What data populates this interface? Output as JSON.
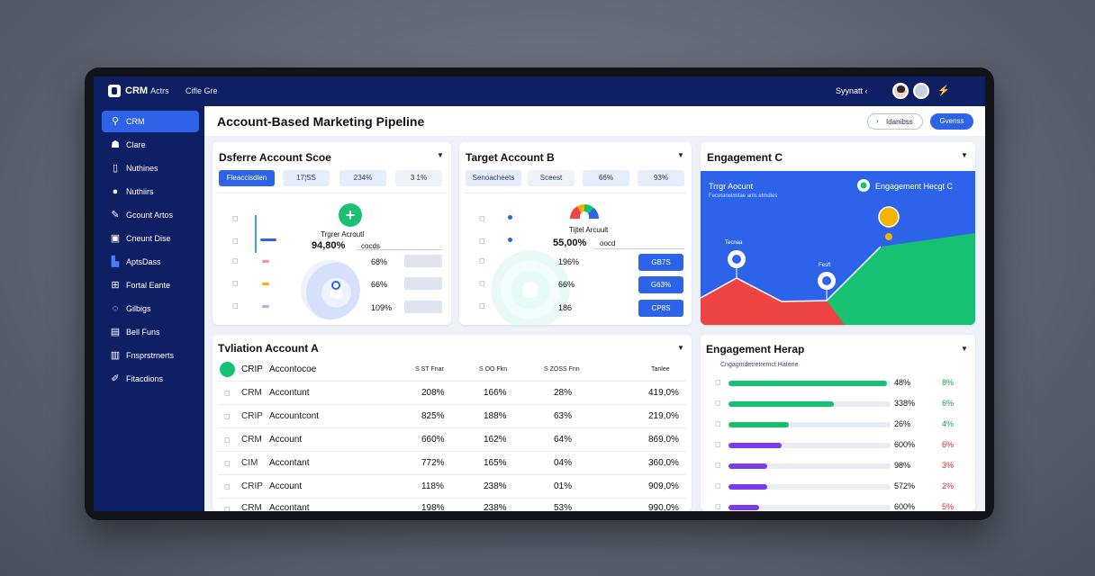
{
  "topbar": {
    "brand": "CRM",
    "brand_sub": "Actrs",
    "crumb": "Cifle Gre",
    "user": "Syynatt ‹"
  },
  "sidebar": {
    "items": [
      {
        "label": "CRM",
        "icon": "search-icon",
        "active": true
      },
      {
        "label": "Clare",
        "icon": "user-icon"
      },
      {
        "label": "Nuthines",
        "icon": "document-icon"
      },
      {
        "label": "Nuthiirs",
        "icon": "circle-icon"
      },
      {
        "label": "Gcount Artos",
        "icon": "edit-icon"
      },
      {
        "label": "Cneunt Dise",
        "icon": "calendar-icon"
      },
      {
        "label": "AptsDass",
        "icon": "building-icon"
      },
      {
        "label": "Fortal Eante",
        "icon": "grid-icon"
      },
      {
        "label": "Gilbigs",
        "icon": "chat-icon"
      },
      {
        "label": "Bell Funs",
        "icon": "box-icon"
      },
      {
        "label": "Fnsprstrnerts",
        "icon": "file-icon"
      },
      {
        "label": "Fitacdions",
        "icon": "wrench-icon"
      }
    ]
  },
  "header": {
    "title": "Account-Based Marketing Pipeline",
    "outline_button": "Idanibss",
    "primary_button": "Gvenss"
  },
  "card1": {
    "title": "Dsferre Account Scoe",
    "chips": [
      "Fleaccisdlen",
      "17¦SS",
      "234%",
      "3 1%"
    ],
    "center_label": "Trgrer Acroutl",
    "center_value": "94,80%",
    "center_sub": "cocds",
    "rows": [
      "68%",
      "66%",
      "109%"
    ]
  },
  "card2": {
    "title": "Target Account B",
    "chips": [
      "Senoacheets",
      "Sceest",
      "66%",
      "93%"
    ],
    "center_label": "Tijtel Arcuult",
    "center_value": "55,00%",
    "center_sub": "oocd",
    "rows": [
      {
        "value": "196%",
        "button": "GB7S"
      },
      {
        "value": "66%",
        "button": "G63%"
      },
      {
        "value": "186",
        "button": "CP8S"
      }
    ]
  },
  "card3": {
    "title": "Engagement C",
    "chart_title": "Trrgr Aocunt",
    "chart_sub": "Fecetanelmitae anls etmdies",
    "legend": "Engagement Hecgt C",
    "marker1": "Tecnaa",
    "marker2": "Fesft"
  },
  "table": {
    "title": "Tvliation Account A",
    "headers": [
      "S ST Fnar",
      "S OO Fkn",
      "S ZOSS Fnn",
      "Tanlee"
    ],
    "rows": [
      {
        "a": "CRIP",
        "b": "Accontocoe",
        "c": "",
        "d": "",
        "e": "",
        "f": ""
      },
      {
        "a": "CRM",
        "b": "Accontunt",
        "c": "208%",
        "d": "166%",
        "e": "28%",
        "f": "419,0%"
      },
      {
        "a": "CRIP",
        "b": "Accountcont",
        "c": "825%",
        "d": "188%",
        "e": "63%",
        "f": "219,0%"
      },
      {
        "a": "CRM",
        "b": "Account",
        "c": "660%",
        "d": "162%",
        "e": "64%",
        "f": "869,0%"
      },
      {
        "a": "CIM",
        "b": "Accontant",
        "c": "772%",
        "d": "165%",
        "e": "04%",
        "f": "360,0%"
      },
      {
        "a": "CRIP",
        "b": "Account",
        "c": "118%",
        "d": "238%",
        "e": "01%",
        "f": "909,0%"
      },
      {
        "a": "CRM",
        "b": "Accontant",
        "c": "198%",
        "d": "238%",
        "e": "53%",
        "f": "990,0%"
      }
    ]
  },
  "heatmap": {
    "title": "Engagement Herap",
    "subtitle": "Cngagmdetretremct Hatene",
    "rows": [
      {
        "value": "48%",
        "pct": "8%",
        "fill": 0.98,
        "color": "#16c172",
        "pct_color": "#16a34a"
      },
      {
        "value": "338%",
        "pct": "6%",
        "fill": 0.65,
        "color": "#16c172",
        "pct_color": "#16a34a"
      },
      {
        "value": "26%",
        "pct": "4%",
        "fill": 0.37,
        "color": "#16c172",
        "pct_color": "#16a34a"
      },
      {
        "value": "600%",
        "pct": "6%",
        "fill": 0.33,
        "color": "#7c3aed",
        "pct_color": "#dc2626"
      },
      {
        "value": "98%",
        "pct": "3%",
        "fill": 0.24,
        "color": "#7c3aed",
        "pct_color": "#dc2626"
      },
      {
        "value": "572%",
        "pct": "2%",
        "fill": 0.24,
        "color": "#7c3aed",
        "pct_color": "#dc2626"
      },
      {
        "value": "600%",
        "pct": "5%",
        "fill": 0.19,
        "color": "#7c3aed",
        "pct_color": "#dc2626"
      }
    ]
  }
}
